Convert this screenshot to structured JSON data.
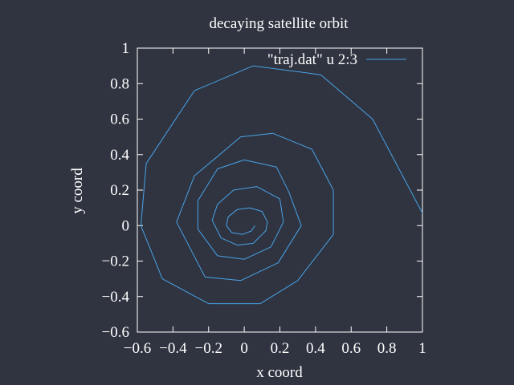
{
  "chart_data": {
    "type": "line",
    "title": "decaying satellite orbit",
    "xlabel": "x coord",
    "ylabel": "y coord",
    "xlim": [
      -0.6,
      1
    ],
    "ylim": [
      -0.6,
      1
    ],
    "xticks": [
      "−0.6",
      "−0.4",
      "−0.2",
      "0",
      "0.2",
      "0.4",
      "0.6",
      "0.8",
      "1"
    ],
    "yticks": [
      "−0.6",
      "−0.4",
      "−0.2",
      "0",
      "0.2",
      "0.4",
      "0.6",
      "0.8",
      "1"
    ],
    "xtick_values": [
      -0.6,
      -0.4,
      -0.2,
      0,
      0.2,
      0.4,
      0.6,
      0.8,
      1
    ],
    "ytick_values": [
      -0.6,
      -0.4,
      -0.2,
      0,
      0.2,
      0.4,
      0.6,
      0.8,
      1
    ],
    "grid": false,
    "legend_position": "top-right",
    "series": [
      {
        "name": "\"traj.dat\" u 2:3",
        "color": "#4aa3e8",
        "x": [
          1.0,
          0.72,
          0.43,
          0.05,
          -0.28,
          -0.55,
          -0.58,
          -0.46,
          -0.2,
          0.09,
          0.3,
          0.5,
          0.5,
          0.38,
          0.16,
          -0.02,
          -0.28,
          -0.38,
          -0.22,
          -0.02,
          0.19,
          0.32,
          0.25,
          0.18,
          0.0,
          -0.15,
          -0.26,
          -0.26,
          -0.15,
          0.0,
          0.15,
          0.22,
          0.2,
          0.07,
          -0.06,
          -0.15,
          -0.18,
          -0.13,
          -0.04,
          0.05,
          0.12,
          0.13,
          0.1,
          0.03,
          -0.04,
          -0.09,
          -0.1,
          -0.07,
          -0.01,
          0.04,
          0.06
        ],
        "y": [
          0.07,
          0.6,
          0.85,
          0.9,
          0.76,
          0.35,
          0.0,
          -0.3,
          -0.44,
          -0.44,
          -0.31,
          -0.05,
          0.2,
          0.43,
          0.52,
          0.5,
          0.28,
          0.02,
          -0.29,
          -0.31,
          -0.21,
          0.0,
          0.19,
          0.33,
          0.37,
          0.32,
          0.14,
          -0.02,
          -0.17,
          -0.19,
          -0.12,
          0.02,
          0.15,
          0.22,
          0.2,
          0.12,
          0.03,
          -0.07,
          -0.11,
          -0.1,
          -0.03,
          0.02,
          0.08,
          0.1,
          0.09,
          0.05,
          0.0,
          -0.04,
          -0.05,
          -0.03,
          0.0
        ]
      }
    ]
  }
}
